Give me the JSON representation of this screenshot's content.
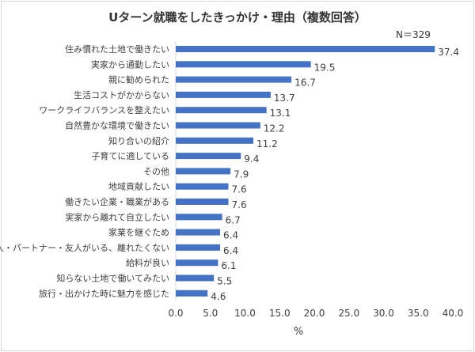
{
  "chart_data": {
    "type": "bar",
    "orientation": "horizontal",
    "title": "Uターン就職をしたきっかけ・理由（複数回答）",
    "note": "N＝329",
    "xlabel": "%",
    "xlim": [
      0,
      40
    ],
    "xticks": [
      "0.0",
      "5.0",
      "10.0",
      "15.0",
      "20.0",
      "25.0",
      "30.0",
      "35.0",
      "40.0"
    ],
    "bar_color": "#4472c4",
    "categories": [
      "住み慣れた土地で働きたい",
      "実家から通勤したい",
      "親に勧められた",
      "生活コストがかからない",
      "ワークライフバランスを整えたい",
      "自然豊かな環境で働きたい",
      "知り合いの紹介",
      "子育てに適している",
      "その他",
      "地域貢献したい",
      "働きたい企業・職業がある",
      "実家から離れて自立したい",
      "家業を継ぐため",
      "恋人・パートナー・友人がいる、離れたくない",
      "給料が良い",
      "知らない土地で働いてみたい",
      "旅行・出かけた時に魅力を感じた"
    ],
    "values": [
      37.4,
      19.5,
      16.7,
      13.7,
      13.1,
      12.2,
      11.2,
      9.4,
      7.9,
      7.6,
      7.6,
      6.7,
      6.4,
      6.4,
      6.1,
      5.5,
      4.6
    ],
    "value_labels": [
      "37.4",
      "19.5",
      "16.7",
      "13.7",
      "13.1",
      "12.2",
      "11.2",
      "9.4",
      "7.9",
      "7.6",
      "7.6",
      "6.7",
      "6.4",
      "6.4",
      "6.1",
      "5.5",
      "4.6"
    ]
  }
}
